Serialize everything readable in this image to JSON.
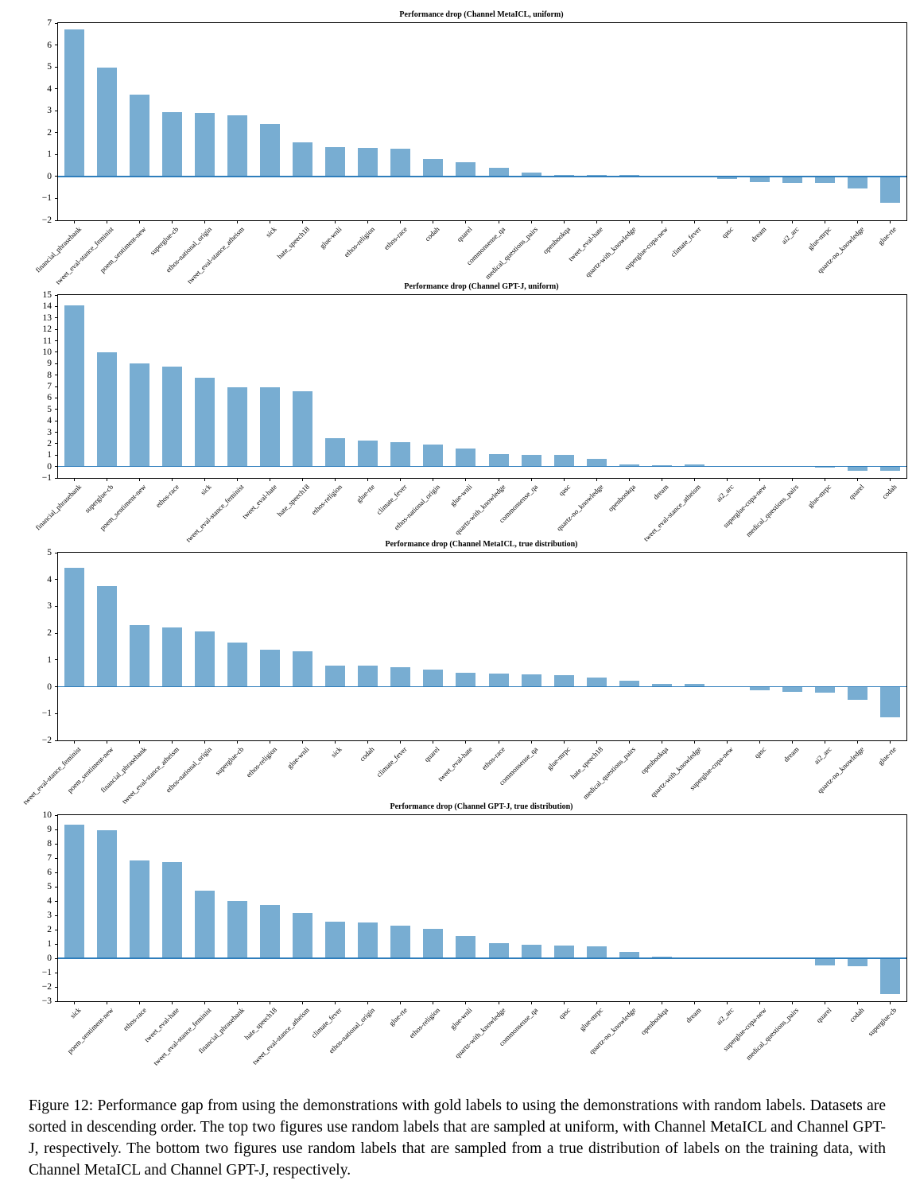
{
  "figure": {
    "caption": "Figure 12: Performance gap from using the demonstrations with gold labels to using the demonstrations with random labels. Datasets are sorted in descending order. The top two figures use random labels that are sampled at uniform, with Channel MetaICL and Channel GPT-J, respectively. The bottom two figures use random labels that are sampled from a true distribution of labels on the training data, with Channel MetaICL and Channel GPT-J, respectively."
  },
  "colors": {
    "bar": "#78add2",
    "zero_line": "#2f7ebc",
    "axis": "#000000"
  },
  "chart_data": [
    {
      "type": "bar",
      "title": "Performance drop (Channel MetaICL, uniform)",
      "ylim": [
        -2,
        7
      ],
      "ytick_step": 1,
      "grid": false,
      "xlabel": "",
      "ylabel": "",
      "categories": [
        "financial_phrasebank",
        "tweet_eval-stance_feminist",
        "poem_sentiment-new",
        "superglue-cb",
        "ethos-national_origin",
        "tweet_eval-stance_atheism",
        "sick",
        "hate_speech18",
        "glue-wnli",
        "ethos-religion",
        "ethos-race",
        "codah",
        "quarel",
        "commonsense_qa",
        "medical_questions_pairs",
        "openbookqa",
        "tweet_eval-hate",
        "quartz-with_knowledge",
        "superglue-copa-new",
        "climate_fever",
        "qasc",
        "dream",
        "ai2_arc",
        "glue-mrpc",
        "quartz-no_knowledge",
        "glue-rte"
      ],
      "values": [
        6.7,
        4.95,
        3.75,
        2.95,
        2.9,
        2.8,
        2.4,
        1.55,
        1.35,
        1.3,
        1.25,
        0.8,
        0.65,
        0.4,
        0.18,
        0.08,
        0.07,
        0.08,
        0.05,
        0.02,
        -0.12,
        -0.25,
        -0.3,
        -0.3,
        -0.55,
        -1.2
      ]
    },
    {
      "type": "bar",
      "title": "Performance drop (Channel GPT-J, uniform)",
      "ylim": [
        -1,
        15
      ],
      "ytick_step": 1,
      "grid": false,
      "xlabel": "",
      "ylabel": "",
      "categories": [
        "financial_phrasebank",
        "superglue-cb",
        "poem_sentiment-new",
        "ethos-race",
        "sick",
        "tweet_eval-stance_feminist",
        "tweet_eval-hate",
        "hate_speech18",
        "ethos-religion",
        "glue-rte",
        "climate_fever",
        "ethos-national_origin",
        "glue-wnli",
        "quartz-with_knowledge",
        "commonsense_qa",
        "qasc",
        "quartz-no_knowledge",
        "openbookqa",
        "dream",
        "tweet_eval-stance_atheism",
        "ai2_arc",
        "superglue-copa-new",
        "medical_questions_pairs",
        "glue-mrpc",
        "quarel",
        "codah"
      ],
      "values": [
        14.1,
        10.0,
        9.05,
        8.75,
        7.8,
        6.95,
        6.95,
        6.6,
        2.5,
        2.3,
        2.15,
        1.9,
        1.6,
        1.1,
        1.0,
        1.05,
        0.65,
        0.15,
        0.12,
        0.15,
        0.03,
        0.03,
        0.02,
        -0.12,
        -0.35,
        -0.4
      ]
    },
    {
      "type": "bar",
      "title": "Performance drop (Channel MetaICL, true distribution)",
      "ylim": [
        -2,
        5
      ],
      "ytick_step": 1,
      "grid": false,
      "xlabel": "",
      "ylabel": "",
      "categories": [
        "tweet_eval-stance_feminist",
        "poem_sentiment-new",
        "financial_phrasebank",
        "tweet_eval-stance_atheism",
        "ethos-national_origin",
        "superglue-cb",
        "ethos-religion",
        "glue-wnli",
        "sick",
        "codah",
        "climate_fever",
        "quarel",
        "tweet_eval-hate",
        "ethos-race",
        "commonsense_qa",
        "glue-mrpc",
        "hate_speech18",
        "medical_questions_pairs",
        "openbookqa",
        "quartz-with_knowledge",
        "superglue-copa-new",
        "qasc",
        "dream",
        "ai2_arc",
        "quartz-no_knowledge",
        "glue-rte"
      ],
      "values": [
        4.45,
        3.75,
        2.3,
        2.22,
        2.05,
        1.65,
        1.38,
        1.32,
        0.8,
        0.78,
        0.72,
        0.65,
        0.52,
        0.5,
        0.45,
        0.42,
        0.35,
        0.22,
        0.12,
        0.1,
        0.03,
        -0.13,
        -0.2,
        -0.22,
        -0.5,
        -1.15
      ]
    },
    {
      "type": "bar",
      "title": "Performance drop (Channel GPT-J, true distribution)",
      "ylim": [
        -3,
        10
      ],
      "ytick_step": 1,
      "grid": false,
      "xlabel": "",
      "ylabel": "",
      "categories": [
        "sick",
        "poem_sentiment-new",
        "ethos-race",
        "tweet_eval-hate",
        "tweet_eval-stance_feminist",
        "financial_phrasebank",
        "hate_speech18",
        "tweet_eval-stance_atheism",
        "climate_fever",
        "ethos-national_origin",
        "glue-rte",
        "ethos-religion",
        "glue-wnli",
        "quartz-with_knowledge",
        "commonsense_qa",
        "qasc",
        "glue-mrpc",
        "quartz-no_knowledge",
        "openbookqa",
        "dream",
        "ai2_arc",
        "superglue-copa-new",
        "medical_questions_pairs",
        "quarel",
        "codah",
        "superglue-cb"
      ],
      "values": [
        9.35,
        8.95,
        6.85,
        6.75,
        4.7,
        4.0,
        3.7,
        3.15,
        2.55,
        2.5,
        2.3,
        2.05,
        1.55,
        1.05,
        0.95,
        0.9,
        0.85,
        0.45,
        0.1,
        0.08,
        0.03,
        0.02,
        0.02,
        -0.5,
        -0.55,
        -2.5
      ]
    }
  ]
}
